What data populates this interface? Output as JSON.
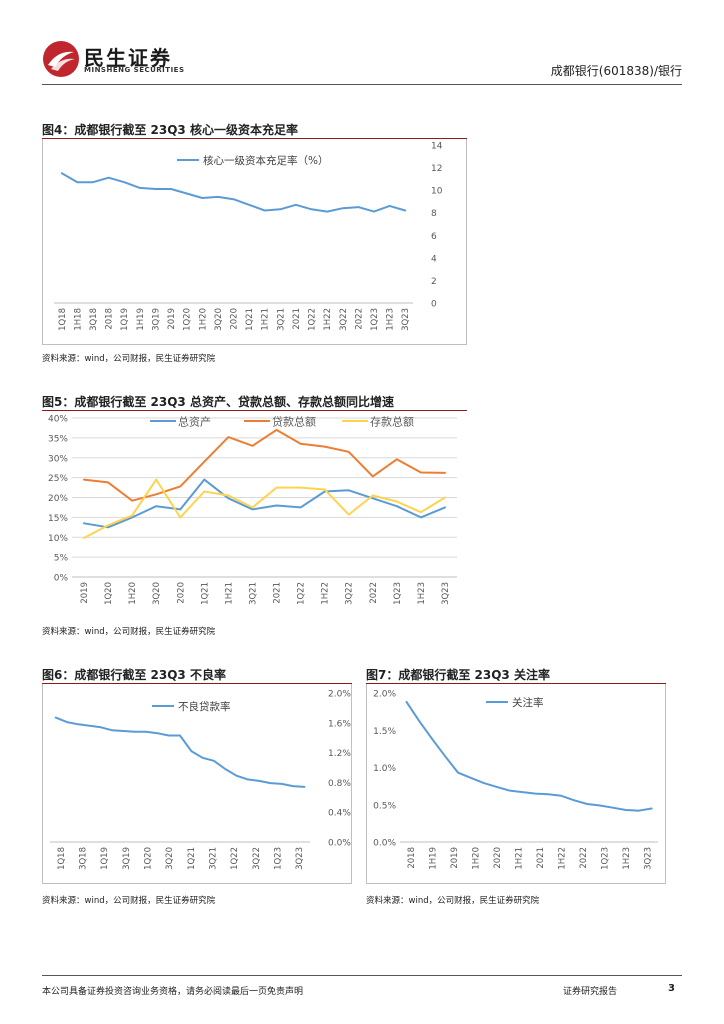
{
  "header": {
    "logo_cn": "民生证券",
    "logo_en": "MINSHENG SECURITIES",
    "report_ref": "成都银行(601838)/银行"
  },
  "colors": {
    "logo_red": "#c0262d",
    "rule": "#8b1a1a",
    "blue": "#5b9bd5",
    "orange": "#ed7d31",
    "yellow": "#ffd34f"
  },
  "source_text": "资料来源：wind，公司财报，民生证券研究院",
  "footer": {
    "disclaimer": "本公司具备证券投资咨询业务资格，请务必阅读最后一页免责声明",
    "doc_type": "证券研究报告",
    "page": "3"
  },
  "chart_data": [
    {
      "id": "fig4",
      "type": "line",
      "title": "图4：成都银行截至 23Q3 核心一级资本充足率",
      "categories": [
        "1Q18",
        "1H18",
        "3Q18",
        "2018",
        "1Q19",
        "1H19",
        "3Q19",
        "2019",
        "1Q20",
        "1H20",
        "3Q20",
        "2020",
        "1Q21",
        "1H21",
        "3Q21",
        "2021",
        "1Q22",
        "1H22",
        "3Q22",
        "2022",
        "1Q23",
        "1H23",
        "3Q23"
      ],
      "series": [
        {
          "name": "核心一级资本充足率（%）",
          "color": "#5b9bd5",
          "values": [
            11.5,
            10.7,
            10.7,
            11.1,
            10.7,
            10.2,
            10.1,
            10.1,
            9.7,
            9.3,
            9.4,
            9.2,
            8.7,
            8.2,
            8.3,
            8.7,
            8.3,
            8.1,
            8.4,
            8.5,
            8.1,
            8.6,
            8.2
          ]
        }
      ],
      "ylim": [
        0,
        14
      ],
      "yticks": [
        "0",
        "2",
        "4",
        "6",
        "8",
        "10",
        "12",
        "14"
      ],
      "y_axis_side": "right",
      "legend": "top-left"
    },
    {
      "id": "fig5",
      "type": "line",
      "title": "图5：成都银行截至 23Q3 总资产、贷款总额、存款总额同比增速",
      "categories": [
        "2019",
        "1Q20",
        "1H20",
        "3Q20",
        "2020",
        "1Q21",
        "1H21",
        "3Q21",
        "2021",
        "1Q22",
        "1H22",
        "3Q22",
        "2022",
        "1Q23",
        "1H23",
        "3Q23"
      ],
      "series": [
        {
          "name": "总资产",
          "color": "#5b9bd5",
          "values": [
            13.5,
            12.5,
            15,
            17.8,
            17,
            24.5,
            19.8,
            17,
            18,
            17.5,
            21.5,
            21.8,
            19.8,
            17.8,
            15,
            17.5
          ]
        },
        {
          "name": "贷款总额",
          "color": "#ed7d31",
          "values": [
            24.5,
            23.8,
            19.2,
            20.8,
            22.8,
            29,
            35.2,
            33,
            37,
            33.5,
            32.8,
            31.5,
            25.3,
            29.6,
            26.3,
            26.2
          ]
        },
        {
          "name": "存款总额",
          "color": "#ffd34f",
          "values": [
            9.8,
            13,
            15.5,
            24.5,
            15,
            21.5,
            20.5,
            17.5,
            22.5,
            22.5,
            22,
            15.7,
            20.5,
            19,
            16.3,
            20
          ]
        }
      ],
      "ylim": [
        0,
        40
      ],
      "yticks": [
        "0%",
        "5%",
        "10%",
        "15%",
        "20%",
        "25%",
        "30%",
        "35%",
        "40%"
      ],
      "y_axis_side": "left",
      "legend": "top"
    },
    {
      "id": "fig6",
      "type": "line",
      "title": "图6：成都银行截至 23Q3 不良率",
      "categories": [
        "1Q18",
        "1H18",
        "3Q18",
        "2018",
        "1Q19",
        "1H19",
        "3Q19",
        "2019",
        "1Q20",
        "1H20",
        "3Q20",
        "2020",
        "1Q21",
        "1H21",
        "3Q21",
        "2021",
        "1Q22",
        "1H22",
        "3Q22",
        "2022",
        "1Q23",
        "1H23",
        "3Q23"
      ],
      "tick_labels": [
        "1Q18",
        "3Q18",
        "1Q19",
        "3Q19",
        "1Q20",
        "3Q20",
        "1Q21",
        "3Q21",
        "1Q22",
        "3Q22",
        "1Q23",
        "3Q23"
      ],
      "series": [
        {
          "name": "不良贷款率",
          "color": "#5b9bd5",
          "values": [
            1.67,
            1.61,
            1.58,
            1.56,
            1.54,
            1.5,
            1.49,
            1.48,
            1.48,
            1.46,
            1.43,
            1.43,
            1.22,
            1.13,
            1.09,
            0.98,
            0.89,
            0.84,
            0.82,
            0.79,
            0.78,
            0.75,
            0.74
          ]
        }
      ],
      "ylim": [
        0,
        2.0
      ],
      "yticks": [
        "0.0%",
        "0.4%",
        "0.8%",
        "1.2%",
        "1.6%",
        "2.0%"
      ],
      "y_axis_side": "right",
      "legend": "top-right"
    },
    {
      "id": "fig7",
      "type": "line",
      "title": "图7：成都银行截至 23Q3 关注率",
      "categories": [
        "2018",
        "1Q19",
        "1H19",
        "3Q19",
        "2019",
        "1Q20",
        "1H20",
        "3Q20",
        "2020",
        "1Q21",
        "1H21",
        "3Q21",
        "2021",
        "1Q22",
        "1H22",
        "3Q22",
        "2022",
        "1Q23",
        "1H23",
        "3Q23"
      ],
      "tick_labels": [
        "2018",
        "1H19",
        "2019",
        "1H20",
        "2020",
        "1H21",
        "2021",
        "1H22",
        "2022",
        "1Q23",
        "1H23",
        "3Q23"
      ],
      "series": [
        {
          "name": "关注率",
          "color": "#5b9bd5",
          "values": [
            1.88,
            1.62,
            1.38,
            1.15,
            0.93,
            0.86,
            0.79,
            0.74,
            0.69,
            0.67,
            0.65,
            0.64,
            0.62,
            0.56,
            0.51,
            0.49,
            0.46,
            0.43,
            0.42,
            0.45
          ]
        }
      ],
      "ylim": [
        0,
        2.0
      ],
      "yticks": [
        "0.0%",
        "0.5%",
        "1.0%",
        "1.5%",
        "2.0%"
      ],
      "y_axis_side": "left",
      "legend": "top"
    }
  ]
}
